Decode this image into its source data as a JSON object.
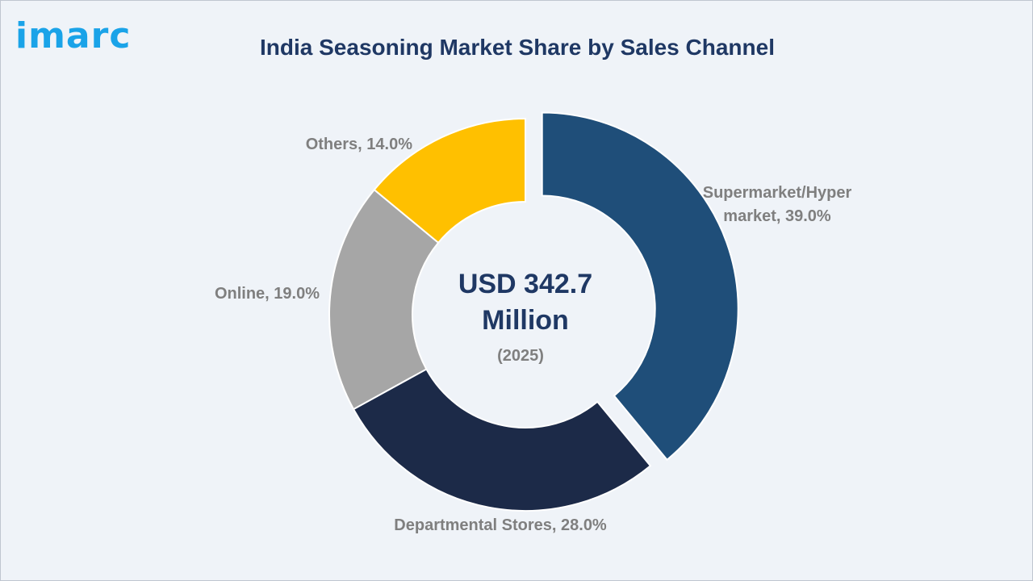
{
  "logo": {
    "text": "imarc",
    "color": "#1aa3e8"
  },
  "chart_data": {
    "type": "pie",
    "title": "India Seasoning Market Share by Sales Channel",
    "center": {
      "value": [
        "USD 342.7",
        "Million"
      ],
      "year": "(2025)"
    },
    "slices": [
      {
        "label": [
          "Supermarket/Hyper",
          "market, 39.0%"
        ],
        "value": 39.0,
        "color": "#1f4e79",
        "exploded": true
      },
      {
        "label": [
          "Departmental Stores, 28.0%"
        ],
        "value": 28.0,
        "color": "#1c2a48",
        "exploded": false
      },
      {
        "label": [
          "Online, 19.0%"
        ],
        "value": 19.0,
        "color": "#a6a6a6",
        "exploded": false
      },
      {
        "label": [
          "Others, 14.0%"
        ],
        "value": 14.0,
        "color": "#ffc000",
        "exploded": false
      }
    ],
    "colors": {
      "title": "#1f3864",
      "labels": "#7f7f7f",
      "center_value": "#1f3864",
      "center_year": "#7f7f7f"
    }
  }
}
